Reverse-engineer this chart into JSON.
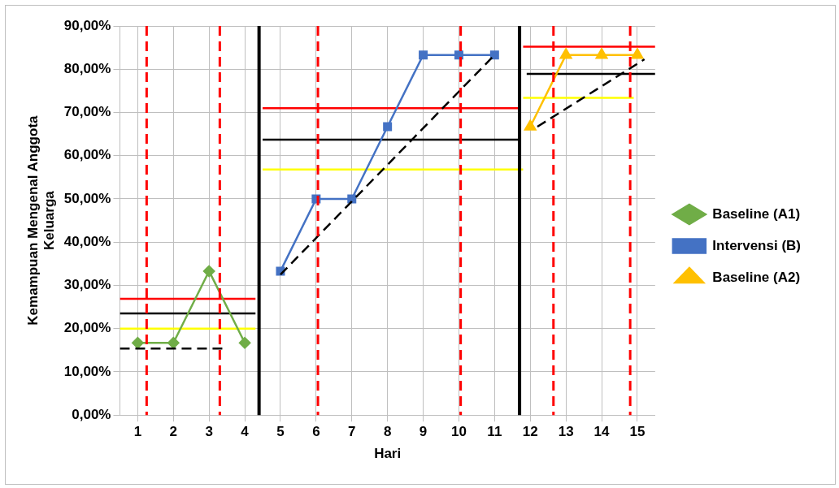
{
  "chart_data": {
    "type": "line",
    "xlabel": "Hari",
    "ylabel": "Kemampuan Mengenal Anggota Keluarga",
    "xlim": [
      0.5,
      15.5
    ],
    "xticks": [
      1,
      2,
      3,
      4,
      5,
      6,
      7,
      8,
      9,
      10,
      11,
      12,
      13,
      14,
      15
    ],
    "ylim": [
      0,
      90
    ],
    "yticks": [
      {
        "value": 0,
        "label": "0,00%"
      },
      {
        "value": 10,
        "label": "10,00%"
      },
      {
        "value": 20,
        "label": "20,00%"
      },
      {
        "value": 30,
        "label": "30,00%"
      },
      {
        "value": 40,
        "label": "40,00%"
      },
      {
        "value": 50,
        "label": "50,00%"
      },
      {
        "value": 60,
        "label": "60,00%"
      },
      {
        "value": 70,
        "label": "70,00%"
      },
      {
        "value": 80,
        "label": "80,00%"
      },
      {
        "value": 90,
        "label": "90,00%"
      }
    ],
    "grid": true,
    "legend": "right",
    "series": [
      {
        "name": "Baseline (A1)",
        "color": "#70ad47",
        "marker": "diamond",
        "x": [
          1,
          2,
          3,
          4
        ],
        "values": [
          16.7,
          16.7,
          33.3,
          16.7
        ]
      },
      {
        "name": "Intervensi (B)",
        "color": "#4472c4",
        "marker": "square",
        "x": [
          5,
          6,
          7,
          8,
          9,
          10,
          11
        ],
        "values": [
          33.3,
          50,
          50,
          66.7,
          83.3,
          83.3,
          83.3
        ]
      },
      {
        "name": "Baseline (A2)",
        "color": "#ffc000",
        "marker": "triangle",
        "x": [
          12,
          13,
          14,
          15
        ],
        "values": [
          66.7,
          83.3,
          83.3,
          83.3
        ]
      },
      {
        "type": "line",
        "color": "#ff0000",
        "marker": "none",
        "x": [
          0.5,
          4.3
        ],
        "values": [
          26.9,
          26.9
        ]
      },
      {
        "type": "line",
        "color": "#000000",
        "marker": "none",
        "x": [
          0.5,
          4.3
        ],
        "values": [
          23.5,
          23.5
        ]
      },
      {
        "type": "line",
        "color": "#ffff00",
        "marker": "none",
        "x": [
          0.5,
          4.3
        ],
        "values": [
          20,
          20
        ]
      },
      {
        "type": "line",
        "color": "#000000",
        "marker": "none",
        "line_style": "dashed",
        "x": [
          0.5,
          3.4
        ],
        "values": [
          15.4,
          15.4
        ]
      },
      {
        "type": "line",
        "color": "#ff0000",
        "marker": "none",
        "x": [
          4.5,
          11.7
        ],
        "values": [
          71,
          71
        ]
      },
      {
        "type": "line",
        "color": "#000000",
        "marker": "none",
        "x": [
          4.5,
          11.7
        ],
        "values": [
          63.7,
          63.7
        ]
      },
      {
        "type": "line",
        "color": "#ffff00",
        "marker": "none",
        "x": [
          4.5,
          11.8
        ],
        "values": [
          56.8,
          56.8
        ]
      },
      {
        "type": "line",
        "color": "#000000",
        "marker": "none",
        "line_style": "dashed",
        "x": [
          5,
          11
        ],
        "values": [
          32.5,
          83.3
        ]
      },
      {
        "type": "line",
        "color": "#ff0000",
        "marker": "none",
        "x": [
          11.8,
          15.5
        ],
        "values": [
          85.2,
          85.2
        ]
      },
      {
        "type": "line",
        "color": "#000000",
        "marker": "none",
        "x": [
          11.9,
          15.5
        ],
        "values": [
          78.9,
          78.9
        ]
      },
      {
        "type": "line",
        "color": "#ffff00",
        "marker": "none",
        "x": [
          11.8,
          14.9
        ],
        "values": [
          73.4,
          73.4
        ]
      },
      {
        "type": "line",
        "color": "#000000",
        "marker": "none",
        "line_style": "dashed",
        "x": [
          12.2,
          15.2
        ],
        "values": [
          66.7,
          82.3
        ]
      }
    ],
    "ref_lines": [
      {
        "axis": "x",
        "value": 1.25,
        "color": "#ff0000",
        "line_style": "dashed"
      },
      {
        "axis": "x",
        "value": 3.3,
        "color": "#ff0000",
        "line_style": "dashed"
      },
      {
        "axis": "x",
        "value": 6.05,
        "color": "#ff0000",
        "line_style": "dashed"
      },
      {
        "axis": "x",
        "value": 10.05,
        "color": "#ff0000",
        "line_style": "dashed"
      },
      {
        "axis": "x",
        "value": 12.65,
        "color": "#ff0000",
        "line_style": "dashed"
      },
      {
        "axis": "x",
        "value": 14.8,
        "color": "#ff0000",
        "line_style": "dashed"
      },
      {
        "axis": "x",
        "value": 4.4,
        "color": "#000000",
        "line_style": "solid"
      },
      {
        "axis": "x",
        "value": 11.7,
        "color": "#000000",
        "line_style": "solid"
      }
    ]
  }
}
